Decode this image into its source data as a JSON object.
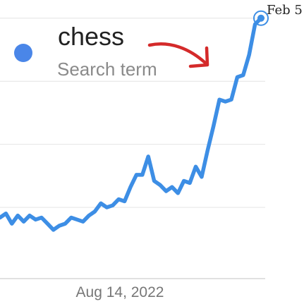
{
  "chart_data": {
    "type": "line",
    "title": "",
    "xlabel": "",
    "ylabel": "",
    "series": [
      {
        "name": "chess",
        "subtitle": "Search term",
        "color": "#3d8ee5",
        "values": [
          30,
          32,
          27,
          31,
          28,
          31,
          29,
          30,
          27,
          24,
          26,
          27,
          30,
          29,
          28,
          31,
          33,
          37,
          35,
          36,
          39,
          38,
          45,
          51,
          51,
          60,
          48,
          46,
          43,
          45,
          42,
          48,
          47,
          55,
          50,
          63,
          75,
          88,
          87,
          88,
          99,
          100,
          110,
          125,
          128
        ]
      }
    ],
    "ylim": [
      0,
      130
    ],
    "x_tick_labels": [
      "Aug 14, 2022"
    ],
    "end_label": "Feb 5",
    "grid": true,
    "legend": "top-left",
    "annotation": "red arrow pointing to the curve",
    "annotation_color": "#d42a2a"
  }
}
